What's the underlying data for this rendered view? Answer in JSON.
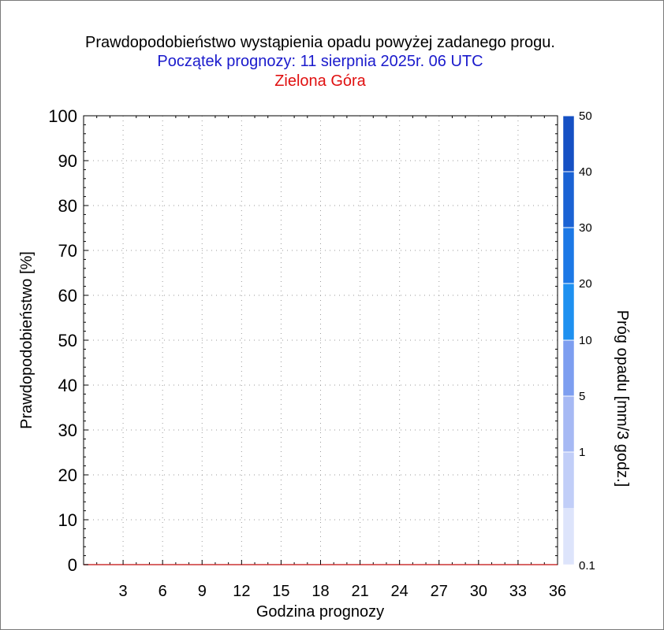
{
  "titles": {
    "line1": "Prawdopodobieństwo wystąpienia opadu powyżej zadanego progu.",
    "line2": "Początek prognozy: 11 sierpnia 2025r. 06 UTC",
    "line3": "Zielona Góra"
  },
  "colors": {
    "title": "#000000",
    "subtitle": "#1a1acc",
    "location": "#e01010",
    "series_line": "#cc3333",
    "scale": [
      "#dde4fb",
      "#c1cef8",
      "#a6b9f4",
      "#7d9ef0",
      "#1e90f0",
      "#1c78e6",
      "#1a62d4",
      "#1550c4",
      "#0f3aa8"
    ]
  },
  "chart_data": {
    "type": "line",
    "xlabel": "Godzina prognozy",
    "ylabel": "Prawdopodobieństwo [%]",
    "xlim": [
      0,
      36
    ],
    "ylim": [
      0,
      100
    ],
    "x_ticks": [
      3,
      6,
      9,
      12,
      15,
      18,
      21,
      24,
      27,
      30,
      33,
      36
    ],
    "y_ticks": [
      0,
      10,
      20,
      30,
      40,
      50,
      60,
      70,
      80,
      90,
      100
    ],
    "grid": true,
    "series": [
      {
        "x": [
          0,
          3,
          6,
          9,
          12,
          15,
          18,
          21,
          24,
          27,
          30,
          33,
          36
        ],
        "values": [
          0,
          0,
          0,
          0,
          0,
          0,
          0,
          0,
          0,
          0,
          0,
          0,
          0
        ]
      }
    ],
    "colorbar": {
      "label": "Próg opadu [mm/3 godz.]",
      "ticks": [
        "0.1",
        "1",
        "5",
        "10",
        "20",
        "30",
        "40",
        "50"
      ]
    }
  }
}
